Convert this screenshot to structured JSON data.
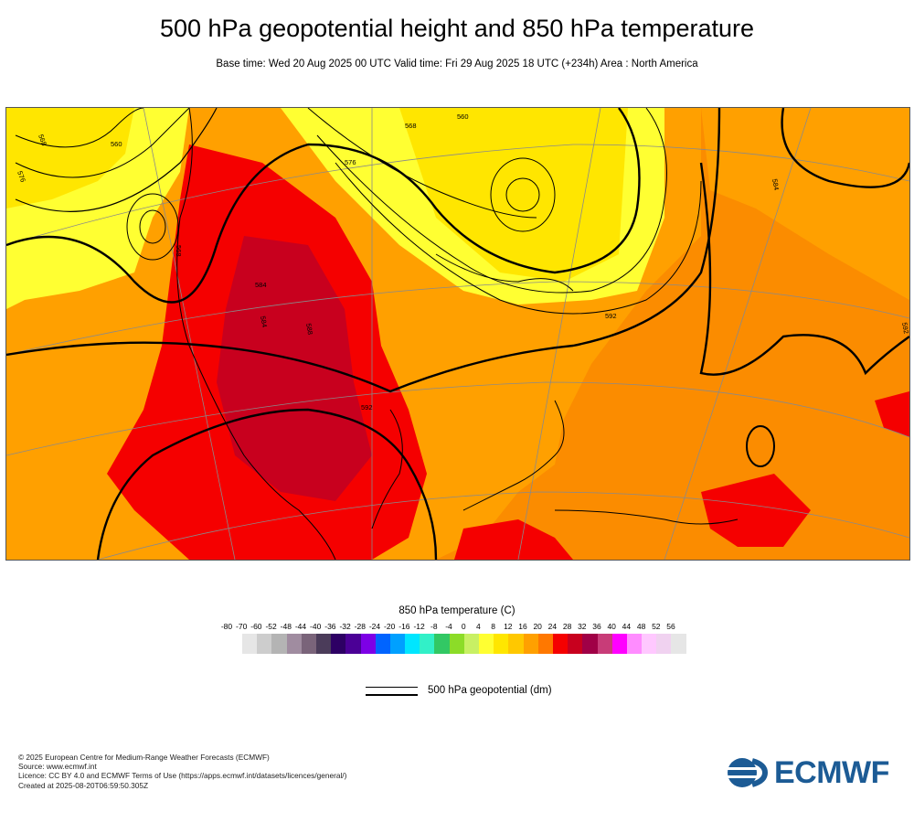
{
  "header": {
    "title": "500 hPa geopotential height and 850 hPa temperature",
    "subtitle": "Base time: Wed 20 Aug 2025 00 UTC Valid time: Fri 29 Aug 2025 18 UTC (+234h) Area : North America"
  },
  "map": {
    "area": "North America",
    "contour_labels": [
      "568",
      "576",
      "560",
      "568",
      "584",
      "592",
      "588",
      "584",
      "560",
      "568",
      "576",
      "592",
      "584",
      "592"
    ],
    "colors": {
      "ocean_background": "#fb8c00",
      "land_warm": "#ffa000",
      "hot": "#f50000",
      "very_hot": "#c8001e",
      "cool": "#ffff32",
      "cold": "#c8f064",
      "contour": "#000000",
      "grid": "#8a8a8a"
    }
  },
  "legend": {
    "title": "850 hPa temperature (C)",
    "ticks": [
      "-80",
      "-70",
      "-60",
      "-52",
      "-48",
      "-44",
      "-40",
      "-36",
      "-32",
      "-28",
      "-24",
      "-20",
      "-16",
      "-12",
      "-8",
      "-4",
      "0",
      "4",
      "8",
      "12",
      "16",
      "20",
      "24",
      "28",
      "32",
      "36",
      "40",
      "44",
      "48",
      "52",
      "56"
    ],
    "colors": [
      "#e6e6e6",
      "#cdcdcd",
      "#b4b4b4",
      "#a08ca0",
      "#7a647a",
      "#4b3c5a",
      "#2d0064",
      "#4b0096",
      "#7d00e6",
      "#0064ff",
      "#00a0ff",
      "#00e6ff",
      "#32f0c8",
      "#32c864",
      "#8cdc28",
      "#c8f064",
      "#ffff32",
      "#ffe600",
      "#ffc800",
      "#ffa000",
      "#ff7800",
      "#f50000",
      "#c8001e",
      "#a00046",
      "#c83c78",
      "#ff00ff",
      "#ff8cff",
      "#ffc8ff",
      "#f0d2f0",
      "#e6e6e6"
    ],
    "geopotential_label": "500 hPa geopotential (dm)"
  },
  "footer": {
    "lines": [
      "© 2025 European Centre for Medium-Range Weather Forecasts (ECMWF)",
      "Source: www.ecmwf.int",
      "Licence: CC BY 4.0 and ECMWF Terms of Use (https://apps.ecmwf.int/datasets/licences/general/)",
      "Created at 2025-08-20T06:59:50.305Z"
    ],
    "logo_text": "ECMWF"
  }
}
